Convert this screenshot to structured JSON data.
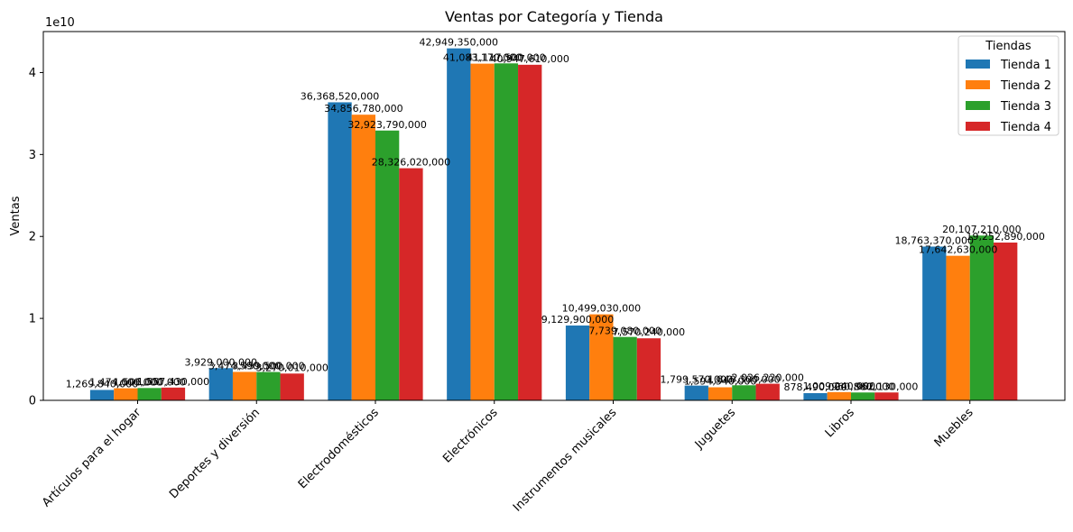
{
  "chart_data": {
    "type": "bar",
    "title": "Ventas por Categoría y Tienda",
    "xlabel": "",
    "ylabel": "Ventas",
    "scale_label": "1e10",
    "ylim": [
      0,
      45000000000
    ],
    "yticks": [
      0,
      10000000000,
      20000000000,
      30000000000,
      40000000000
    ],
    "ytick_labels": [
      "0",
      "1",
      "2",
      "3",
      "4"
    ],
    "categories": [
      "Artículos para el hogar",
      "Deportes y diversión",
      "Electrodomésticos",
      "Electrónicos",
      "Instrumentos musicales",
      "Juguetes",
      "Libros",
      "Muebles"
    ],
    "legend": {
      "title": "Tiendas",
      "position": "top-right"
    },
    "series": [
      {
        "name": "Tienda 1",
        "color": "#1f77b4",
        "values": [
          1269840000,
          3929000000,
          36368520000,
          42949350000,
          9129900000,
          1799570000,
          878490000,
          18763370000
        ],
        "labels": [
          "1,269,840,000",
          "3,929,000,000",
          "36,368,520,000",
          "42,949,350,000",
          "9,129,900,000",
          "1,799,570,000",
          "878,490,000",
          "18,763,370,000"
        ]
      },
      {
        "name": "Tienda 2",
        "color": "#ff7f0e",
        "values": [
          1474000000,
          3474590000,
          34856780000,
          41083170000,
          10499030000,
          1594540000,
          1009240000,
          17642630000
        ],
        "labels": [
          "1,474,000,000",
          "3,474,590,000",
          "34,856,780,000",
          "41,083,170,000",
          "10,499,030,000",
          "1,594,540,000",
          "1,009,240,000",
          "17,642,630,000"
        ]
      },
      {
        "name": "Tienda 3",
        "color": "#2ca02c",
        "values": [
          1506000000,
          3459500000,
          32923790000,
          41117500000,
          7739080000,
          1840300000,
          960880000,
          20107210000
        ],
        "labels": [
          "1,506,000,000",
          "3,459,500,000",
          "32,923,790,000",
          "41,117,500,000",
          "7,739,080,000",
          "1,840,300,000",
          "960,880,000",
          "20,107,210,000"
        ]
      },
      {
        "name": "Tienda 4",
        "color": "#d62728",
        "values": [
          1557430000,
          3270010000,
          28326020000,
          40947610000,
          7570240000,
          2026220000,
          962130000,
          19252890000
        ],
        "labels": [
          "1,557,430,000",
          "3,270,010,000",
          "28,326,020,000",
          "40,947,610,000",
          "7,570,240,000",
          "2,026,220,000",
          "962,130,000",
          "19,252,890,000"
        ]
      }
    ]
  }
}
